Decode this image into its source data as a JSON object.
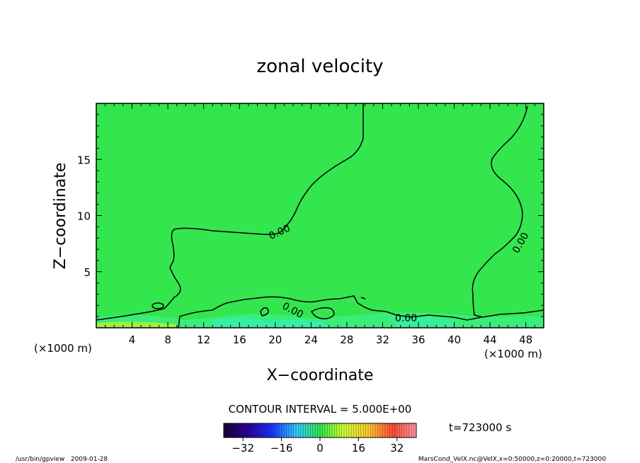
{
  "chart_data": {
    "type": "heatmap",
    "title": "zonal velocity",
    "xlabel": "X−coordinate",
    "ylabel": "Z−coordinate",
    "x_unit_left": "(×1000 m)",
    "x_unit_right": "(×1000 m)",
    "xlim": [
      0,
      50
    ],
    "ylim": [
      0,
      20
    ],
    "xticks": [
      "4",
      "8",
      "12",
      "16",
      "20",
      "24",
      "28",
      "32",
      "36",
      "40",
      "44",
      "48"
    ],
    "xtick_values": [
      4,
      8,
      12,
      16,
      20,
      24,
      28,
      32,
      36,
      40,
      44,
      48
    ],
    "yticks": [
      "5",
      "10",
      "15"
    ],
    "ytick_values": [
      5,
      10,
      15
    ],
    "contour_interval_text": "CONTOUR INTERVAL = 5.000E+00",
    "contour_labels": [
      "0.00",
      "0.00",
      "0.00",
      "0.00"
    ],
    "time_text": "t=723000 s",
    "colorbar": {
      "range": [
        -40,
        40
      ],
      "ticks": [
        "−32",
        "−16",
        "0",
        "16",
        "32"
      ],
      "tick_values": [
        -32,
        -16,
        0,
        16,
        32
      ]
    },
    "field_color": "#33e64d",
    "footer_left": "/usr/bin/gpview   2009-01-28",
    "footer_right": "MarsCond_VelX.nc@VelX,x=0:50000,z=0:20000,t=723000"
  }
}
